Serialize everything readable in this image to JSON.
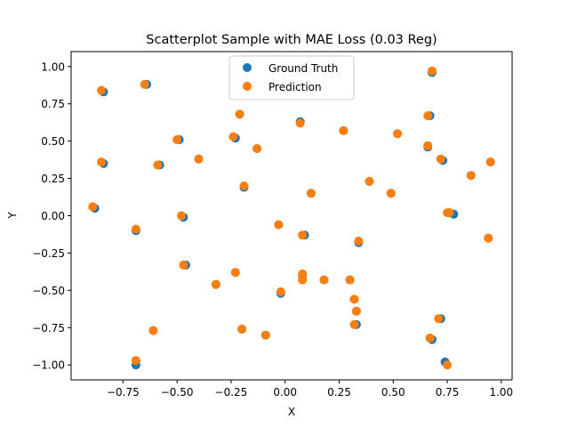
{
  "chart_data": {
    "type": "scatter",
    "title": "Scatterplot Sample with MAE Loss (0.03 Reg)",
    "xlabel": "X",
    "ylabel": "Y",
    "xlim": [
      -0.99,
      1.05
    ],
    "ylim": [
      -1.1,
      1.1
    ],
    "xticks": [
      -0.75,
      -0.5,
      -0.25,
      0.0,
      0.25,
      0.5,
      0.75,
      1.0
    ],
    "xtick_labels": [
      "−0.75",
      "−0.50",
      "−0.25",
      "0.00",
      "0.25",
      "0.50",
      "0.75",
      "1.00"
    ],
    "yticks": [
      -1.0,
      -0.75,
      -0.5,
      -0.25,
      0.0,
      0.25,
      0.5,
      0.75,
      1.0
    ],
    "ytick_labels": [
      "−1.00",
      "−0.75",
      "−0.50",
      "−0.25",
      "0.00",
      "0.25",
      "0.50",
      "0.75",
      "1.00"
    ],
    "grid": false,
    "legend_position": "top-center",
    "series": [
      {
        "name": "Ground Truth",
        "color": "#1f77b4",
        "points": [
          [
            -0.64,
            0.88
          ],
          [
            -0.84,
            0.83
          ],
          [
            -0.84,
            0.35
          ],
          [
            -0.88,
            0.05
          ],
          [
            -0.58,
            0.34
          ],
          [
            -0.49,
            0.51
          ],
          [
            -0.4,
            0.38
          ],
          [
            -0.23,
            0.52
          ],
          [
            -0.21,
            0.68
          ],
          [
            -0.13,
            0.45
          ],
          [
            -0.19,
            0.19
          ],
          [
            -0.47,
            -0.01
          ],
          [
            -0.69,
            -0.1
          ],
          [
            -0.46,
            -0.33
          ],
          [
            -0.32,
            -0.46
          ],
          [
            -0.23,
            -0.38
          ],
          [
            -0.61,
            -0.77
          ],
          [
            -0.69,
            -1.0
          ],
          [
            -0.2,
            -0.76
          ],
          [
            -0.09,
            -0.8
          ],
          [
            -0.02,
            -0.52
          ],
          [
            -0.03,
            -0.06
          ],
          [
            0.09,
            -0.13
          ],
          [
            0.12,
            0.15
          ],
          [
            0.07,
            0.63
          ],
          [
            0.27,
            0.57
          ],
          [
            0.39,
            0.23
          ],
          [
            0.52,
            0.55
          ],
          [
            0.49,
            0.15
          ],
          [
            0.34,
            -0.18
          ],
          [
            0.08,
            -0.4
          ],
          [
            0.08,
            -0.43
          ],
          [
            0.18,
            -0.43
          ],
          [
            0.3,
            -0.43
          ],
          [
            0.32,
            -0.56
          ],
          [
            0.33,
            -0.64
          ],
          [
            0.33,
            -0.73
          ],
          [
            0.68,
            0.96
          ],
          [
            0.67,
            0.67
          ],
          [
            0.66,
            0.46
          ],
          [
            0.73,
            0.37
          ],
          [
            0.86,
            0.27
          ],
          [
            0.95,
            0.36
          ],
          [
            0.78,
            0.01
          ],
          [
            0.94,
            -0.15
          ],
          [
            0.72,
            -0.69
          ],
          [
            0.68,
            -0.83
          ],
          [
            0.74,
            -0.98
          ],
          [
            0.76,
            0.02
          ]
        ]
      },
      {
        "name": "Prediction",
        "color": "#ff7f0e",
        "points": [
          [
            -0.65,
            0.88
          ],
          [
            -0.85,
            0.84
          ],
          [
            -0.85,
            0.36
          ],
          [
            -0.89,
            0.06
          ],
          [
            -0.59,
            0.34
          ],
          [
            -0.5,
            0.51
          ],
          [
            -0.4,
            0.38
          ],
          [
            -0.24,
            0.53
          ],
          [
            -0.21,
            0.68
          ],
          [
            -0.13,
            0.45
          ],
          [
            -0.19,
            0.2
          ],
          [
            -0.48,
            0.0
          ],
          [
            -0.69,
            -0.09
          ],
          [
            -0.47,
            -0.33
          ],
          [
            -0.32,
            -0.46
          ],
          [
            -0.23,
            -0.38
          ],
          [
            -0.61,
            -0.77
          ],
          [
            -0.69,
            -0.97
          ],
          [
            -0.2,
            -0.76
          ],
          [
            -0.09,
            -0.8
          ],
          [
            -0.02,
            -0.51
          ],
          [
            -0.03,
            -0.06
          ],
          [
            0.08,
            -0.13
          ],
          [
            0.12,
            0.15
          ],
          [
            0.07,
            0.62
          ],
          [
            0.27,
            0.57
          ],
          [
            0.39,
            0.23
          ],
          [
            0.52,
            0.55
          ],
          [
            0.49,
            0.15
          ],
          [
            0.34,
            -0.17
          ],
          [
            0.08,
            -0.39
          ],
          [
            0.08,
            -0.43
          ],
          [
            0.18,
            -0.43
          ],
          [
            0.3,
            -0.43
          ],
          [
            0.32,
            -0.56
          ],
          [
            0.33,
            -0.64
          ],
          [
            0.32,
            -0.73
          ],
          [
            0.68,
            0.97
          ],
          [
            0.66,
            0.67
          ],
          [
            0.66,
            0.47
          ],
          [
            0.72,
            0.38
          ],
          [
            0.86,
            0.27
          ],
          [
            0.95,
            0.36
          ],
          [
            0.76,
            0.02
          ],
          [
            0.94,
            -0.15
          ],
          [
            0.71,
            -0.69
          ],
          [
            0.67,
            -0.82
          ],
          [
            0.75,
            -1.0
          ],
          [
            0.75,
            0.02
          ]
        ]
      }
    ]
  }
}
